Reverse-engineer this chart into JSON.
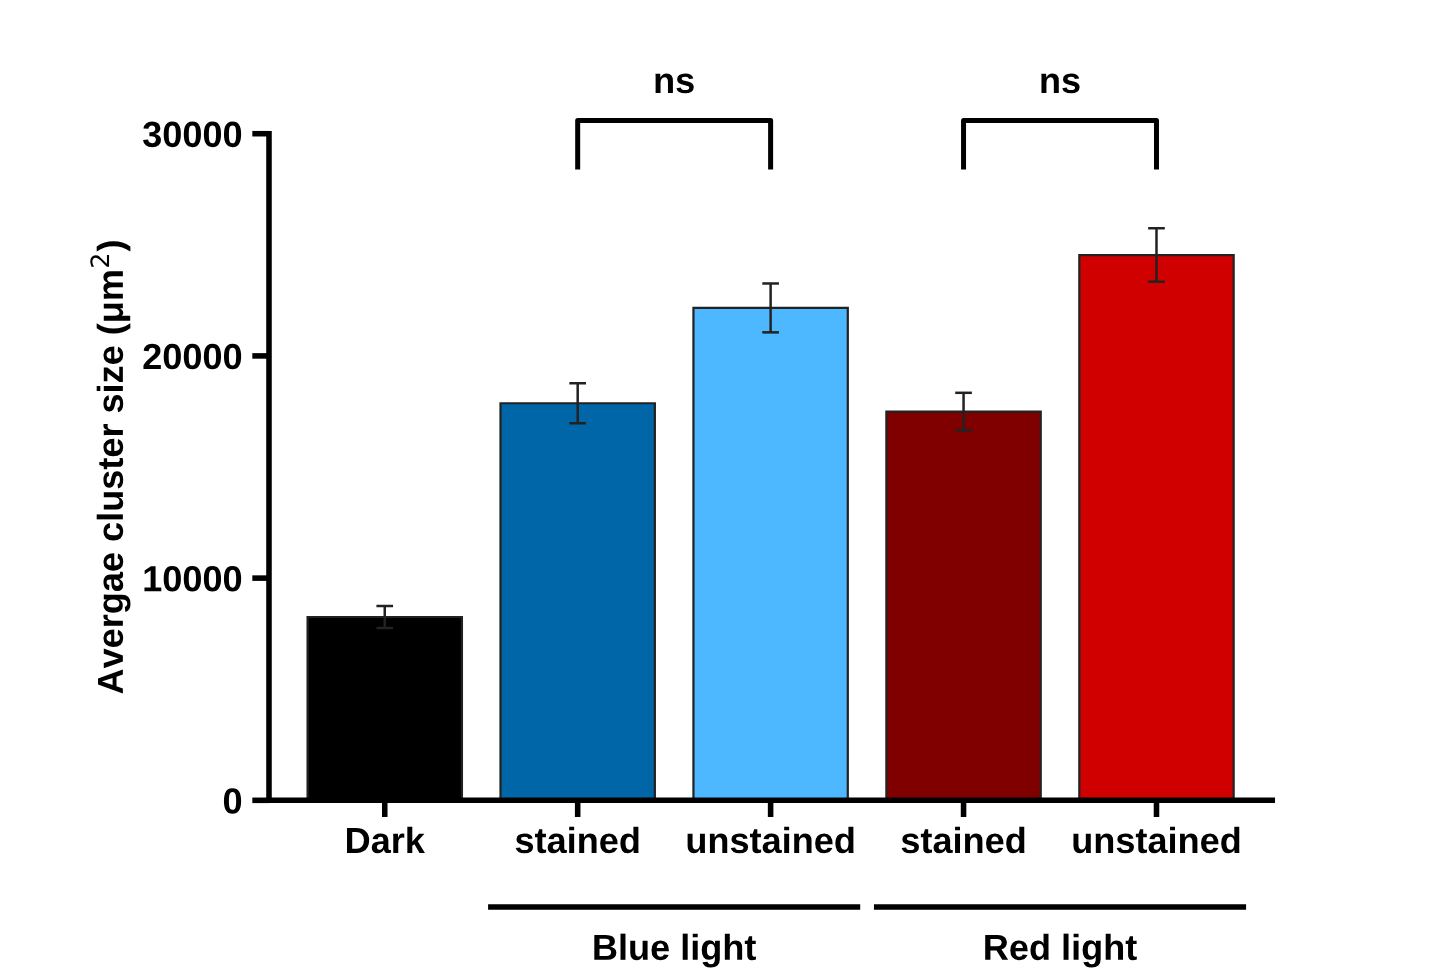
{
  "chart_data": {
    "type": "bar",
    "ylabel": "Avergae cluster size (μm$^{2}$)",
    "categories": [
      "Dark",
      "stained",
      "unstained",
      "stained",
      "unstained"
    ],
    "values": [
      8250,
      17870,
      22160,
      17490,
      24540
    ],
    "errors": [
      500,
      900,
      1100,
      850,
      1200
    ],
    "colors": [
      "#000000",
      "#0066a8",
      "#4db8ff",
      "#800000",
      "#d00000"
    ],
    "ylim": [
      0,
      30000
    ],
    "yticks": [
      0,
      10000,
      20000,
      30000
    ],
    "grid": false,
    "annotations": [
      "ns",
      "ns",
      "Blue light",
      "Red light"
    ]
  }
}
